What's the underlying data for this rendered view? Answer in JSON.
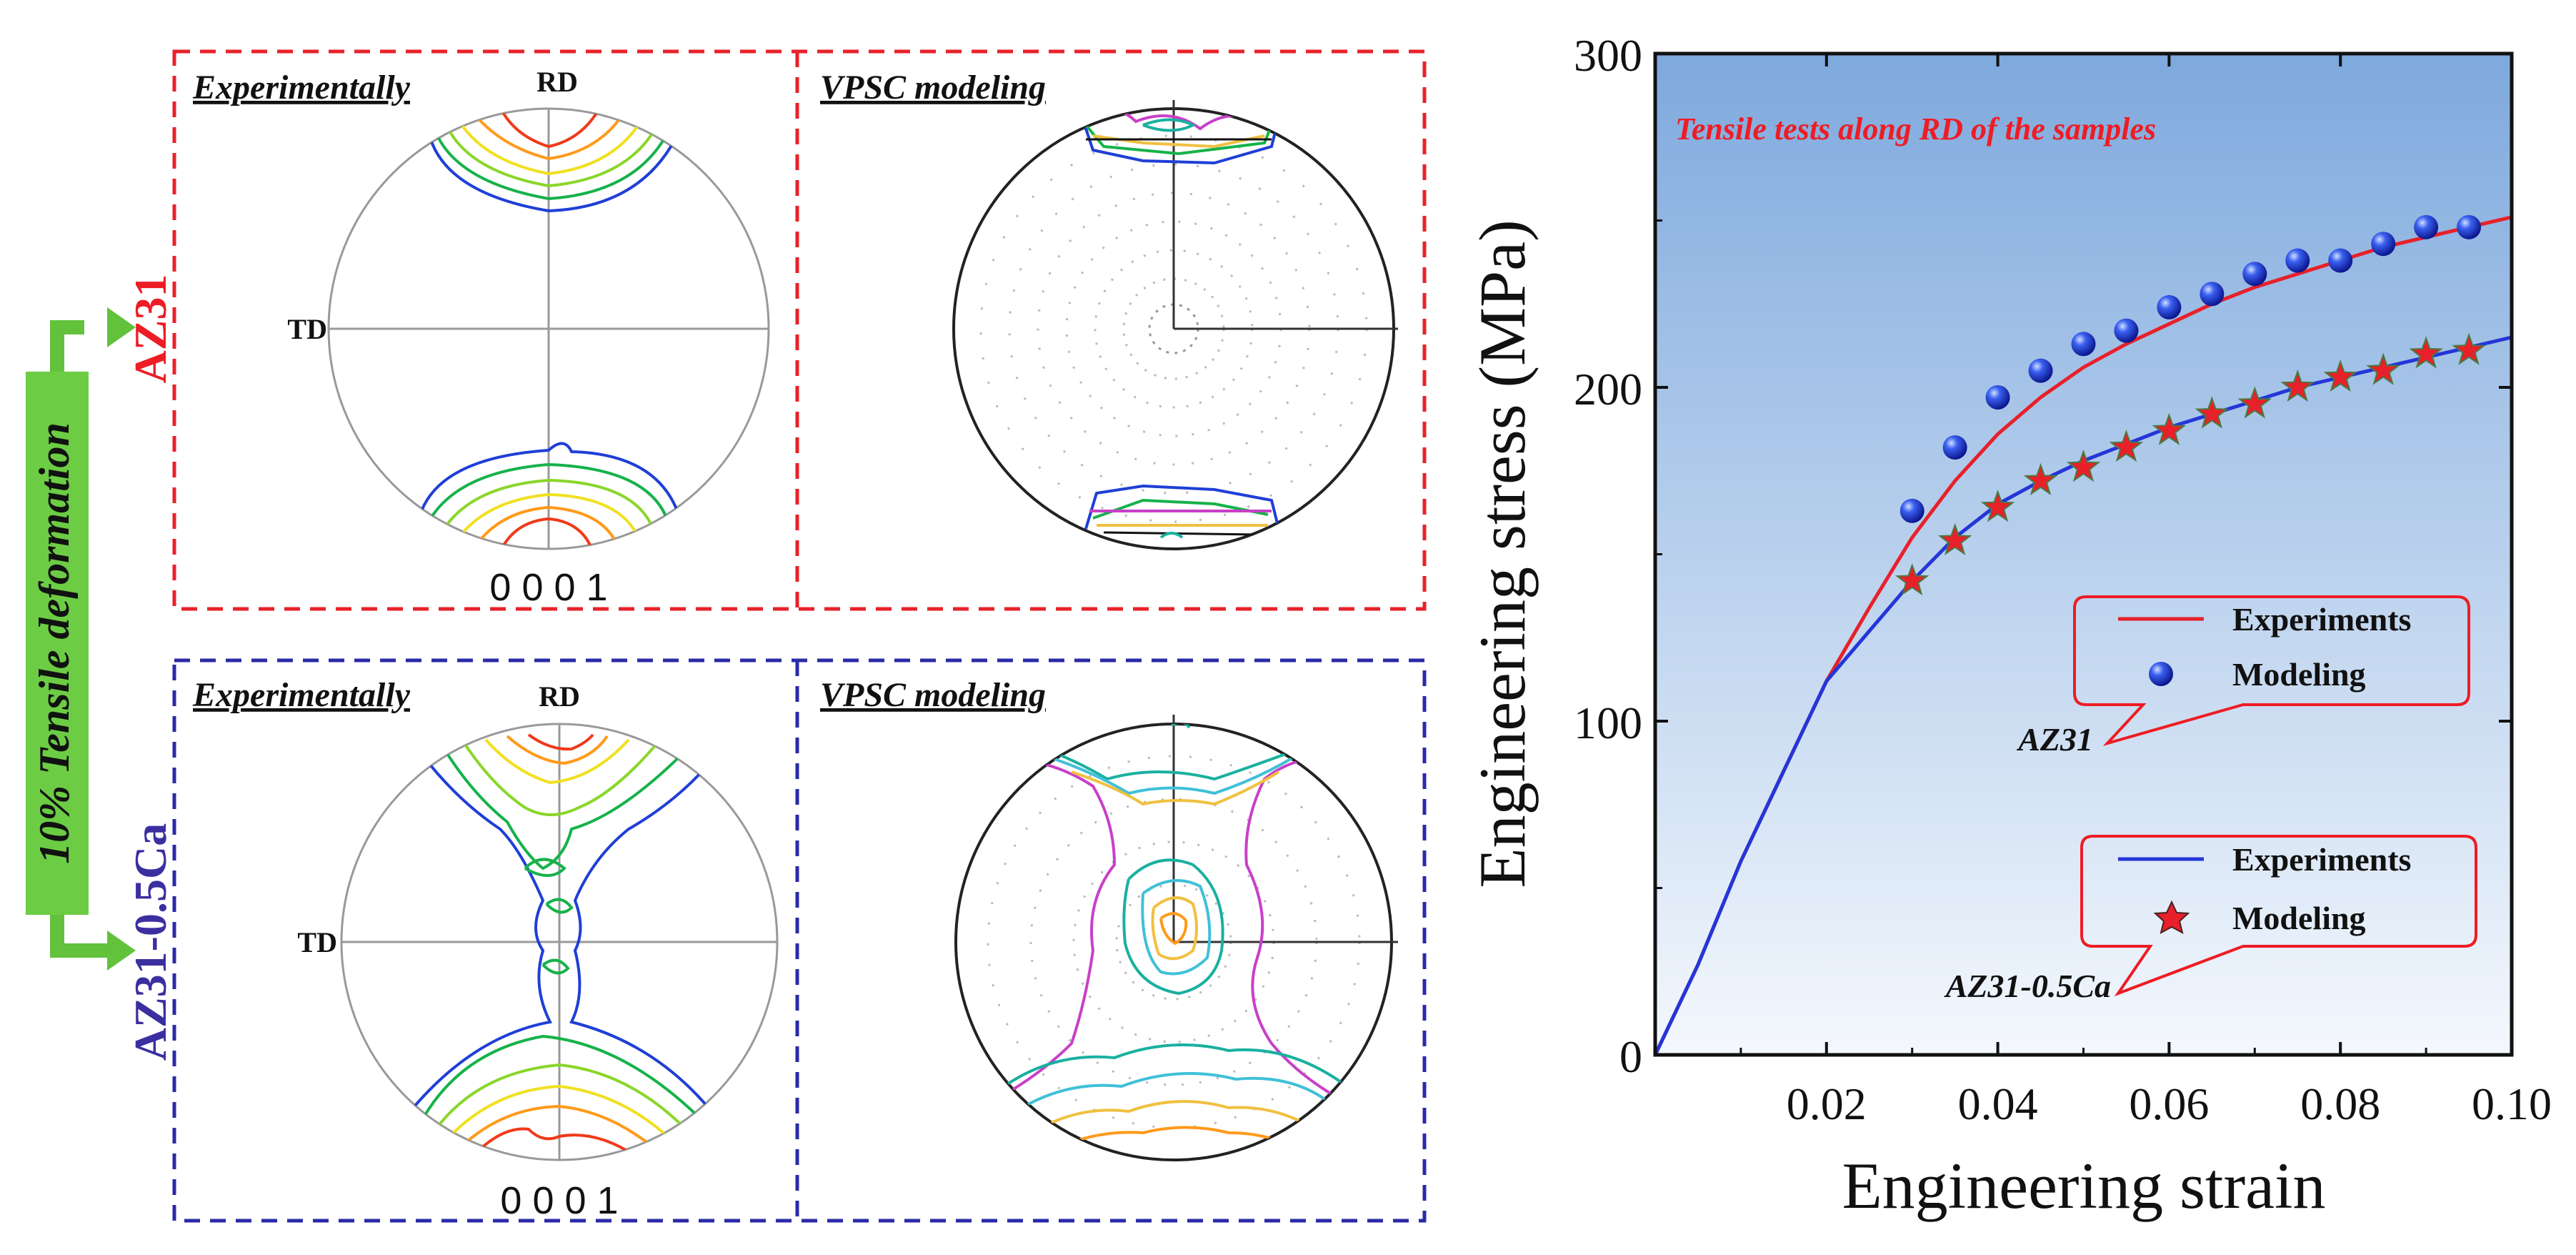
{
  "side_label": "10% Tensile deformation",
  "groups": [
    {
      "alloy": "AZ31",
      "alloy_color": "#ee1c24",
      "border_color": "#e8222a",
      "exp_header": "Experimentally",
      "model_header": "VPSC modeling",
      "rd": "RD",
      "td": "TD",
      "pole_figure_label": "0 0 0 1"
    },
    {
      "alloy": "AZ31-0.5Ca",
      "alloy_color": "#3b2fa0",
      "border_color": "#2a2aa8",
      "exp_header": "Experimentally",
      "model_header": "VPSC modeling",
      "rd": "RD",
      "td": "TD",
      "pole_figure_label": "0 0 0 1"
    }
  ],
  "arrow_color": "#62c23c",
  "contour_colors": [
    "#1f3fd6",
    "#16b24a",
    "#8ad62a",
    "#f0e020",
    "#ff9a1a",
    "#f03a1a"
  ],
  "model_contour_colors": [
    "#c840c8",
    "#1ab0a0",
    "#40c0d8",
    "#f0c040",
    "#111111"
  ],
  "chart_data": {
    "type": "line",
    "annotation": "Tensile tests along RD of the samples",
    "xlabel": "Engineering strain",
    "ylabel": "Engineering stress (MPa)",
    "xlim": [
      0,
      0.1
    ],
    "ylim": [
      0,
      300
    ],
    "x_ticks": [
      "0.02",
      "0.04",
      "0.06",
      "0.08",
      "0.10"
    ],
    "y_ticks": [
      "0",
      "100",
      "200",
      "300"
    ],
    "series": [
      {
        "name": "AZ31",
        "kind": "line",
        "legend": "Experiments",
        "color": "#e8202a",
        "x": [
          0,
          0.005,
          0.01,
          0.015,
          0.02,
          0.025,
          0.03,
          0.035,
          0.04,
          0.045,
          0.05,
          0.055,
          0.06,
          0.065,
          0.07,
          0.075,
          0.08,
          0.085,
          0.09,
          0.095,
          0.1
        ],
        "y": [
          0,
          27,
          58,
          85,
          112,
          134,
          155,
          172,
          186,
          197,
          206,
          213,
          219,
          225,
          230,
          234,
          238,
          242,
          245,
          248,
          251
        ]
      },
      {
        "name": "AZ31",
        "kind": "markers",
        "legend": "Modeling",
        "marker": "sphere",
        "color": "#1428e0",
        "x": [
          0.03,
          0.035,
          0.04,
          0.045,
          0.05,
          0.055,
          0.06,
          0.065,
          0.07,
          0.075,
          0.08,
          0.085,
          0.09,
          0.095
        ],
        "y": [
          163,
          182,
          197,
          205,
          213,
          217,
          224,
          228,
          234,
          238,
          238,
          243,
          248,
          248
        ]
      },
      {
        "name": "AZ31-0.5Ca",
        "kind": "line",
        "legend": "Experiments",
        "color": "#2436d8",
        "x": [
          0,
          0.005,
          0.01,
          0.015,
          0.02,
          0.025,
          0.03,
          0.035,
          0.04,
          0.045,
          0.05,
          0.055,
          0.06,
          0.065,
          0.07,
          0.075,
          0.08,
          0.085,
          0.09,
          0.095,
          0.1
        ],
        "y": [
          0,
          27,
          58,
          85,
          112,
          127,
          142,
          155,
          165,
          172,
          178,
          183,
          188,
          192,
          196,
          200,
          203,
          206,
          209,
          212,
          215
        ]
      },
      {
        "name": "AZ31-0.5Ca",
        "kind": "markers",
        "legend": "Modeling",
        "marker": "star",
        "color": "#e8202a",
        "x": [
          0.03,
          0.035,
          0.04,
          0.045,
          0.05,
          0.055,
          0.06,
          0.065,
          0.07,
          0.075,
          0.08,
          0.085,
          0.09,
          0.095
        ],
        "y": [
          142,
          154,
          164,
          172,
          176,
          182,
          187,
          192,
          195,
          200,
          203,
          205,
          210,
          211
        ]
      }
    ],
    "legend_labels": {
      "experiments": "Experiments",
      "modeling": "Modeling"
    },
    "callouts": [
      "AZ31",
      "AZ31-0.5Ca"
    ]
  }
}
